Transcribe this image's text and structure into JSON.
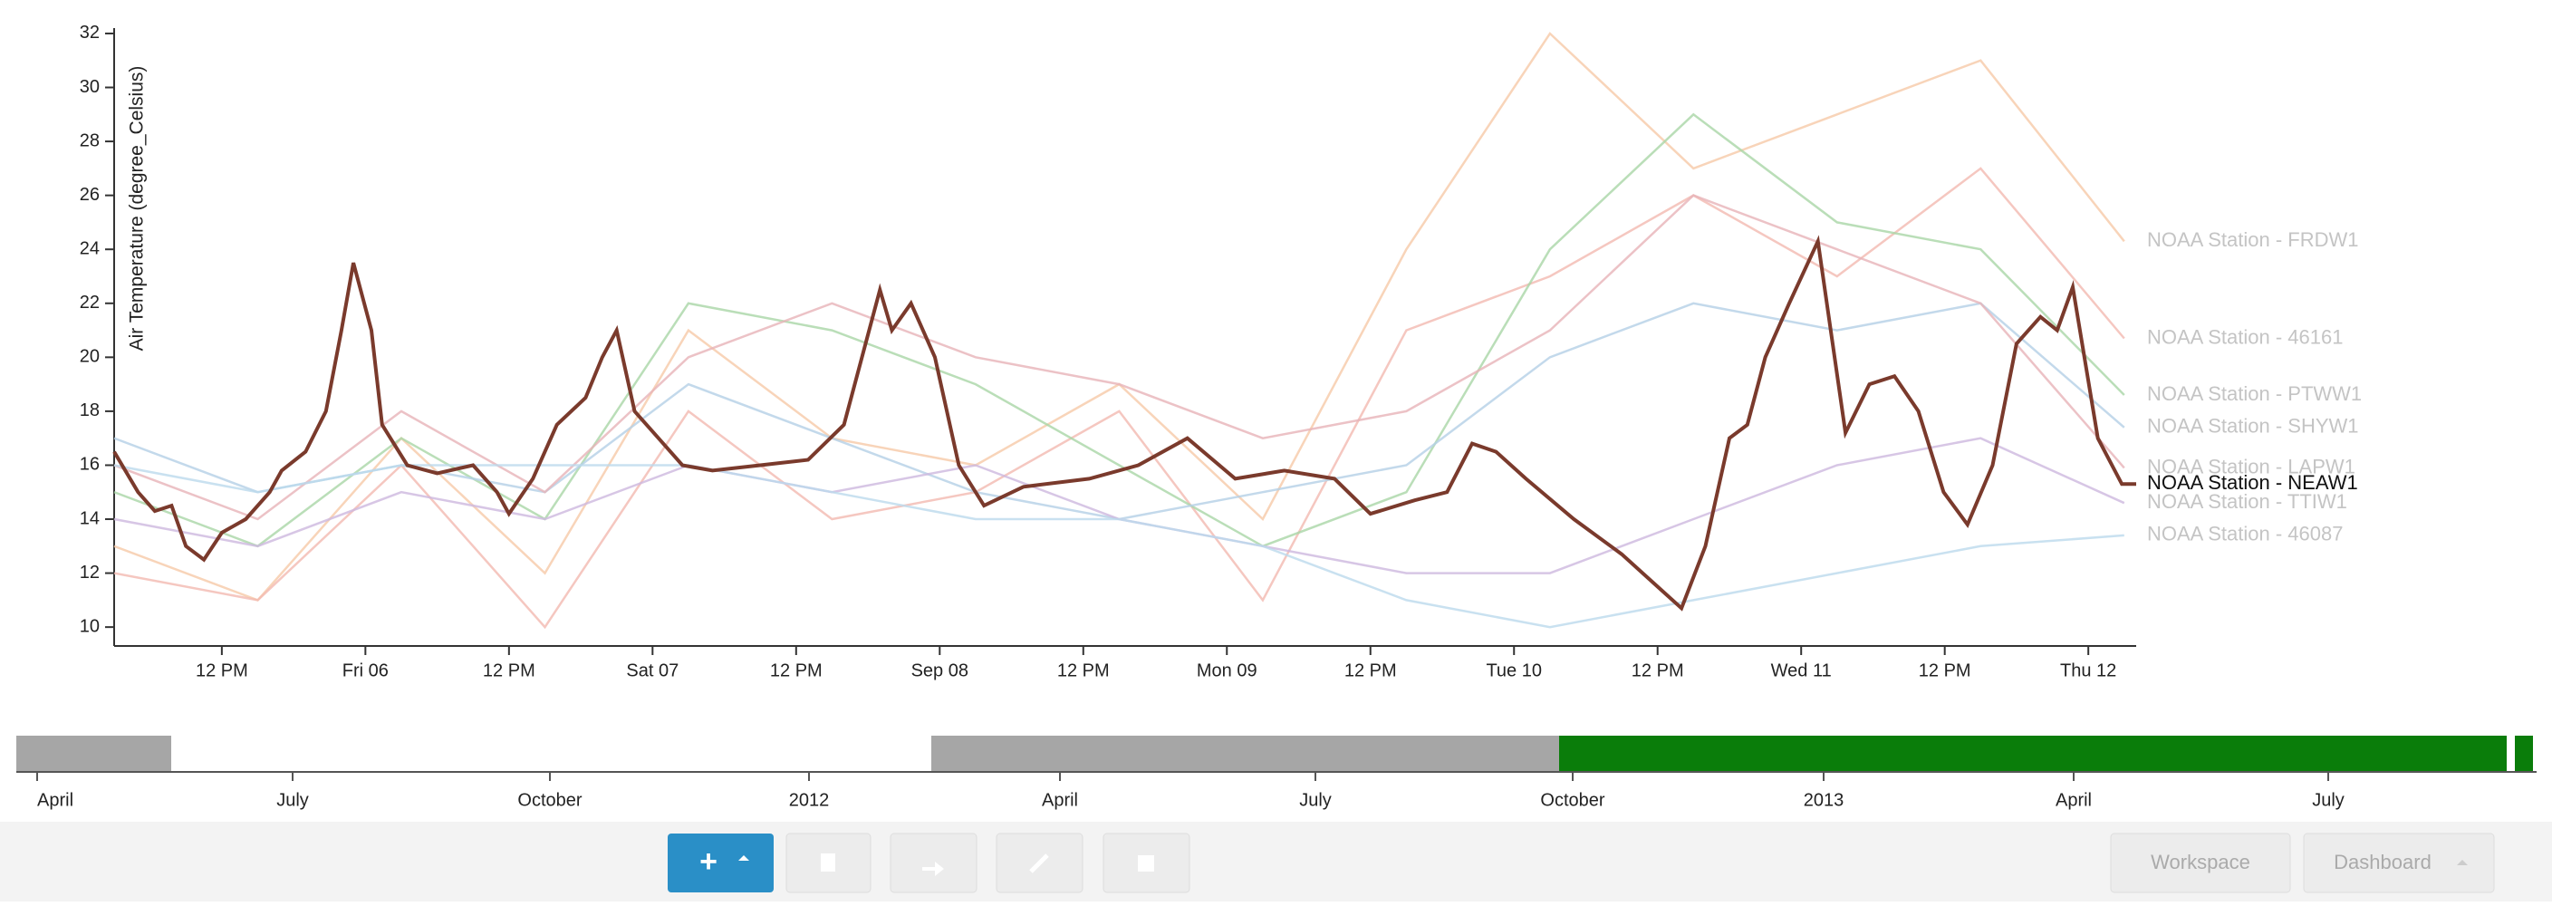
{
  "chart_data": {
    "type": "line",
    "y_label": "Air Temperature (degree_Celsius)",
    "xlim": [
      0,
      169
    ],
    "ylim": [
      9.3,
      32.2
    ],
    "yticks": [
      10,
      12,
      14,
      16,
      18,
      20,
      22,
      24,
      26,
      28,
      30,
      32
    ],
    "xticks": [
      {
        "value": 9,
        "label": "12 PM"
      },
      {
        "value": 21,
        "label": "Fri 06"
      },
      {
        "value": 33,
        "label": "12 PM"
      },
      {
        "value": 45,
        "label": "Sat 07"
      },
      {
        "value": 57,
        "label": "12 PM"
      },
      {
        "value": 69,
        "label": "Sep 08"
      },
      {
        "value": 81,
        "label": "12 PM"
      },
      {
        "value": 93,
        "label": "Mon 09"
      },
      {
        "value": 105,
        "label": "12 PM"
      },
      {
        "value": 117,
        "label": "Tue 10"
      },
      {
        "value": 129,
        "label": "12 PM"
      },
      {
        "value": 141,
        "label": "Wed 11"
      },
      {
        "value": 153,
        "label": "12 PM"
      },
      {
        "value": 165,
        "label": "Thu 12"
      }
    ],
    "x": [
      0,
      12,
      24,
      36,
      48,
      60,
      72,
      84,
      96,
      108,
      120,
      132,
      144,
      156,
      168
    ],
    "series": [
      {
        "name": "NOAA Station - NEAW1",
        "color": "#7a3a2c",
        "highlight": true,
        "x": [
          0,
          2,
          3.4,
          4.8,
          6,
          7.5,
          9,
          11,
          13,
          14,
          16,
          17.7,
          19,
          20,
          21.5,
          22.4,
          24.5,
          27,
          30,
          32,
          33,
          35,
          37,
          39.4,
          40.8,
          42,
          43.5,
          45.5,
          47.5,
          50,
          54,
          58,
          61,
          64,
          65,
          66.6,
          68.6,
          70.6,
          72.7,
          76,
          81.5,
          85.6,
          89.7,
          93.7,
          97.8,
          102,
          105,
          108.7,
          111.4,
          113.5,
          115.5,
          118,
          122,
          126,
          129,
          131,
          133,
          135,
          136.5,
          138,
          140,
          142.4,
          144.7,
          146.7,
          148.8,
          150.8,
          152.9,
          154.9,
          157,
          159,
          161,
          162.4,
          163.7,
          165.8,
          167.8,
          169
        ],
        "values": [
          16.5,
          15,
          14.3,
          14.5,
          13,
          12.5,
          13.5,
          14,
          15,
          15.8,
          16.5,
          18,
          21,
          23.5,
          21,
          17.5,
          16,
          15.7,
          16,
          15,
          14.2,
          15.5,
          17.5,
          18.5,
          20,
          21,
          18,
          17,
          16,
          15.8,
          16,
          16.2,
          17.5,
          22.5,
          21,
          22,
          20,
          16,
          14.5,
          15.2,
          15.5,
          16,
          17,
          15.5,
          15.8,
          15.5,
          14.2,
          14.7,
          15,
          16.8,
          16.5,
          15.5,
          14,
          12.7,
          11.5,
          10.7,
          13,
          17,
          17.5,
          20,
          22,
          24.3,
          17.2,
          19,
          19.3,
          18,
          15,
          13.8,
          16,
          20.5,
          21.5,
          21,
          22.6,
          17,
          15.3,
          15.3
        ]
      },
      {
        "name": "NOAA Station - FRDW1",
        "color": "#f6c9a8",
        "values": [
          13,
          11,
          17,
          12,
          21,
          17,
          16,
          19,
          14,
          24,
          32,
          27,
          29,
          31,
          24.3
        ]
      },
      {
        "name": "NOAA Station - 46161",
        "color": "#f3b9b0",
        "values": [
          12,
          11,
          16,
          10,
          18,
          14,
          15,
          18,
          11,
          21,
          23,
          26,
          23,
          27,
          20.7
        ]
      },
      {
        "name": "NOAA Station - PTWW1",
        "color": "#a9d6a6",
        "values": [
          15,
          13,
          17,
          14,
          22,
          21,
          19,
          16,
          13,
          15,
          24,
          29,
          25,
          24,
          18.6
        ]
      },
      {
        "name": "NOAA Station - SHYW1",
        "color": "#b4cfe6",
        "values": [
          17,
          15,
          16,
          15,
          19,
          17,
          15,
          14,
          15,
          16,
          20,
          22,
          21,
          22,
          17.4
        ]
      },
      {
        "name": "NOAA Station - LAPW1",
        "color": "#e7b3b8",
        "values": [
          16,
          14,
          18,
          15,
          20,
          22,
          20,
          19,
          17,
          18,
          21,
          26,
          24,
          22,
          15.9
        ]
      },
      {
        "name": "NOAA Station - TTIW1",
        "color": "#cdb8de",
        "values": [
          14,
          13,
          15,
          14,
          16,
          15,
          16,
          14,
          13,
          12,
          12,
          14,
          16,
          17,
          14.6
        ]
      },
      {
        "name": "NOAA Station - 46087",
        "color": "#bcd9ec",
        "values": [
          16,
          15,
          16,
          16,
          16,
          15,
          14,
          14,
          13,
          11,
          10,
          11,
          12,
          13,
          13.4
        ]
      }
    ]
  },
  "timeline": {
    "labels": [
      "April",
      "July",
      "October",
      "2012",
      "April",
      "July",
      "October",
      "2013",
      "April",
      "July"
    ]
  },
  "toolbar": {
    "add": "+",
    "workspace": "Workspace",
    "dashboard": "Dashboard"
  }
}
